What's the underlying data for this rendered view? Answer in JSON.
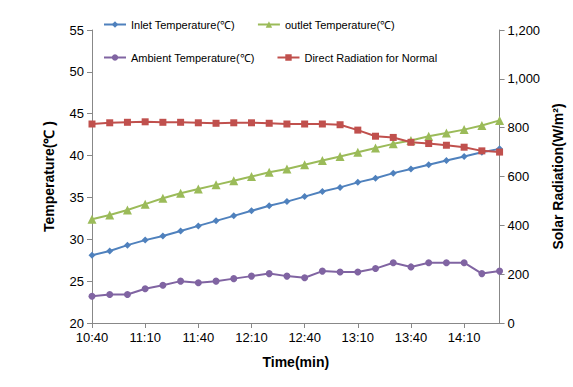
{
  "chart_data": {
    "type": "line",
    "x_label": "Time(min)",
    "y_label": "Temperature(℃ )",
    "y2_label": "Solar Radiation(W/m²)",
    "categories": [
      "10:40",
      null,
      null,
      "11:10",
      null,
      null,
      "11:40",
      null,
      null,
      "12:10",
      null,
      null,
      "12:40",
      null,
      null,
      "13:10",
      null,
      null,
      "13:40",
      null,
      null,
      "14:10",
      null,
      null
    ],
    "series": [
      {
        "name": "Inlet Temperature(℃)",
        "color": "#4f81bd",
        "marker": "diamond",
        "values": [
          28.1,
          28.6,
          29.3,
          29.9,
          30.4,
          31.0,
          31.6,
          32.2,
          32.8,
          33.4,
          34.0,
          34.5,
          35.1,
          35.7,
          36.2,
          36.8,
          37.3,
          37.9,
          38.4,
          38.9,
          39.4,
          39.9,
          40.4,
          40.8
        ]
      },
      {
        "name": "outlet Temperature(℃)",
        "color": "#9bbb59",
        "marker": "triangle",
        "values": [
          32.4,
          32.9,
          33.5,
          34.2,
          34.9,
          35.5,
          36.0,
          36.5,
          37.0,
          37.5,
          38.0,
          38.4,
          38.9,
          39.4,
          39.9,
          40.4,
          40.9,
          41.4,
          41.8,
          42.3,
          42.7,
          43.1,
          43.6,
          44.2
        ]
      },
      {
        "name": "Ambient Temperature(℃)",
        "color": "#8064a2",
        "marker": "circle",
        "values": [
          23.2,
          23.4,
          23.4,
          24.1,
          24.5,
          25.0,
          24.8,
          25.0,
          25.3,
          25.6,
          25.9,
          25.6,
          25.4,
          26.2,
          26.1,
          26.1,
          26.5,
          27.2,
          26.7,
          27.2,
          27.2,
          27.2,
          25.9,
          26.2
        ]
      },
      {
        "name": "Direct Radiation for Normal",
        "color": "#c0504d",
        "marker": "square",
        "axis": "y2",
        "values": [
          815,
          820,
          822,
          824,
          822,
          822,
          820,
          818,
          820,
          820,
          818,
          815,
          815,
          815,
          812,
          790,
          765,
          760,
          740,
          735,
          728,
          720,
          705,
          700
        ]
      }
    ],
    "ylim": [
      20,
      55
    ],
    "yticks": [
      20,
      25,
      30,
      35,
      40,
      45,
      50,
      55
    ],
    "y2lim": [
      0,
      1200
    ],
    "y2ticks": [
      0,
      200,
      400,
      600,
      800,
      1000,
      1200
    ],
    "grid": false,
    "legend": "top-left"
  }
}
